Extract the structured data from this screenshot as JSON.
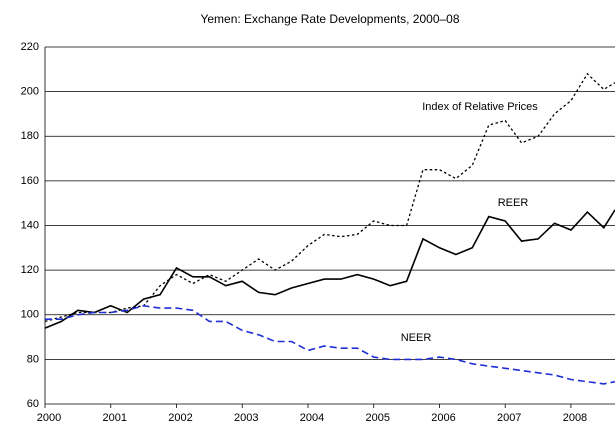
{
  "chart_data": {
    "type": "line",
    "title": "Yemen:  Exchange Rate Developments, 2000–08",
    "x": [
      2000,
      2000.25,
      2000.5,
      2000.75,
      2001,
      2001.25,
      2001.5,
      2001.75,
      2002,
      2002.25,
      2002.5,
      2002.75,
      2003,
      2003.25,
      2003.5,
      2003.75,
      2004,
      2004.25,
      2004.5,
      2004.75,
      2005,
      2005.25,
      2005.5,
      2005.75,
      2006,
      2006.25,
      2006.5,
      2006.75,
      2007,
      2007.25,
      2007.5,
      2007.75,
      2008,
      2008.25,
      2008.5,
      2008.67
    ],
    "series": [
      {
        "name": "REER",
        "color": "#000000",
        "style": "solid",
        "values": [
          94,
          97,
          102,
          101,
          104,
          101,
          107,
          109,
          121,
          117,
          117,
          113,
          115,
          110,
          109,
          112,
          114,
          116,
          116,
          118,
          116,
          113,
          115,
          134,
          130,
          127,
          130,
          144,
          142,
          133,
          134,
          141,
          138,
          146,
          139,
          147
        ]
      },
      {
        "name": "Index of Relative Prices",
        "color": "#000000",
        "style": "dotted",
        "values": [
          97,
          99,
          101,
          101,
          101,
          103,
          104,
          113,
          118,
          114,
          118,
          115,
          120,
          125,
          120,
          124,
          131,
          136,
          135,
          136,
          142,
          140,
          140,
          165,
          165,
          161,
          167,
          185,
          187,
          177,
          180,
          190,
          196,
          208,
          201,
          204
        ]
      },
      {
        "name": "NEER",
        "color": "#1f2fd6",
        "style": "dashed",
        "values": [
          98,
          98,
          100,
          101,
          101,
          102,
          104,
          103,
          103,
          102,
          97,
          97,
          93,
          91,
          88,
          88,
          84,
          86,
          85,
          85,
          81,
          80,
          80,
          80,
          81,
          80,
          78,
          77,
          76,
          75,
          74,
          73,
          71,
          70,
          69,
          70
        ]
      }
    ],
    "xlim": [
      2000,
      2008.67
    ],
    "xticks": [
      2000,
      2001,
      2002,
      2003,
      2004,
      2005,
      2006,
      2007,
      2008
    ],
    "ylim": [
      60,
      220
    ],
    "yticks": [
      60,
      80,
      100,
      120,
      140,
      160,
      180,
      200,
      220
    ],
    "grid": true
  }
}
